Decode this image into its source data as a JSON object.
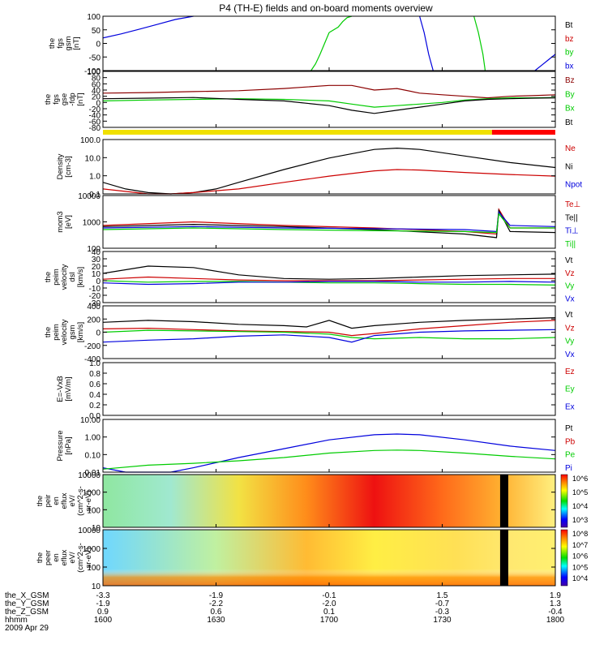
{
  "title": "P4 (TH-E) fields and on-board moments overview",
  "colors": {
    "black": "#000000",
    "red": "#cc0000",
    "green": "#00cc00",
    "blue": "#0000dd",
    "darkred": "#8b0000",
    "yellow": "#f0e000",
    "brightred": "#ff0000"
  },
  "chart_data": [
    {
      "type": "line",
      "ylabel": [
        "the",
        "fgs",
        "gsm",
        "[nT]"
      ],
      "yticks": [
        "100",
        "50",
        "0",
        "-50",
        "-100"
      ],
      "ylim": [
        -100,
        100
      ],
      "log": false,
      "legend": [
        {
          "text": "Bt",
          "color": "#000000"
        },
        {
          "text": "bz",
          "color": "#cc0000"
        },
        {
          "text": "by",
          "color": "#00cc00"
        },
        {
          "text": "bx",
          "color": "#0000dd"
        }
      ],
      "series": [
        {
          "color": "#0000dd",
          "x": [
            0,
            0.04,
            0.08,
            0.12,
            0.16,
            0.2
          ],
          "y": [
            20,
            35,
            52,
            70,
            88,
            100
          ]
        },
        {
          "color": "#00cc00",
          "x": [
            0.46,
            0.47,
            0.48,
            0.49,
            0.5
          ],
          "y": [
            -100,
            -75,
            -40,
            0,
            40
          ]
        },
        {
          "color": "#00cc00",
          "x": [
            0.5,
            0.52,
            0.53,
            0.54,
            0.55
          ],
          "y": [
            40,
            60,
            80,
            95,
            100
          ]
        },
        {
          "color": "#0000dd",
          "x": [
            0.7,
            0.71,
            0.72,
            0.73
          ],
          "y": [
            100,
            40,
            -40,
            -100
          ]
        },
        {
          "color": "#00cc00",
          "x": [
            0.82,
            0.83,
            0.84,
            0.845
          ],
          "y": [
            100,
            40,
            -40,
            -100
          ]
        },
        {
          "color": "#0000dd",
          "x": [
            0.955,
            0.97,
            0.985,
            1.0
          ],
          "y": [
            -100,
            -80,
            -60,
            -40
          ]
        }
      ]
    },
    {
      "type": "line",
      "ylabel": [
        "the",
        "fgs",
        "gse",
        "-fdp",
        "[nT]"
      ],
      "yticks": [
        "100",
        "80",
        "60",
        "40",
        "20",
        "0",
        "-20",
        "-40",
        "-60",
        "-80"
      ],
      "ylim": [
        -80,
        100
      ],
      "log": false,
      "legend": [
        {
          "text": "Bz",
          "color": "#8b0000"
        },
        {
          "text": "By",
          "color": "#00cc00"
        },
        {
          "text": "Bx",
          "color": "#00cc00"
        },
        {
          "text": "Bt",
          "color": "#000000"
        }
      ],
      "series": [
        {
          "color": "#8b0000",
          "x": [
            0,
            0.1,
            0.2,
            0.3,
            0.4,
            0.5,
            0.55,
            0.6,
            0.65,
            0.7,
            0.75,
            0.8,
            0.85,
            0.9,
            0.95,
            1
          ],
          "y": [
            30,
            32,
            35,
            38,
            45,
            55,
            55,
            40,
            45,
            30,
            25,
            20,
            15,
            20,
            22,
            25
          ]
        },
        {
          "color": "#00cc00",
          "x": [
            0,
            0.1,
            0.2,
            0.3,
            0.4,
            0.5,
            0.55,
            0.6,
            0.65,
            0.7,
            0.75,
            0.8,
            0.85,
            0.9,
            0.95,
            1
          ],
          "y": [
            5,
            8,
            10,
            12,
            10,
            5,
            -5,
            -15,
            -10,
            -5,
            0,
            8,
            12,
            15,
            15,
            16
          ]
        },
        {
          "color": "#000000",
          "x": [
            0,
            0.1,
            0.2,
            0.3,
            0.4,
            0.5,
            0.55,
            0.6,
            0.65,
            0.7,
            0.75,
            0.8,
            0.85,
            0.9,
            0.95,
            1
          ],
          "y": [
            12,
            14,
            16,
            10,
            5,
            -10,
            -25,
            -35,
            -25,
            -15,
            -5,
            5,
            10,
            12,
            14,
            15
          ]
        }
      ]
    },
    {
      "type": "line",
      "ylabel": [
        "Density",
        "[cm-3]"
      ],
      "yticks": [
        "100.0",
        "10.0",
        "1.0",
        "0.1"
      ],
      "ylim": [
        0.1,
        200
      ],
      "log": true,
      "legend": [
        {
          "text": "Ne",
          "color": "#cc0000"
        },
        {
          "text": "Ni",
          "color": "#000000"
        },
        {
          "text": "Npot",
          "color": "#0000dd"
        }
      ],
      "series": [
        {
          "color": "#000000",
          "x": [
            0,
            0.05,
            0.1,
            0.15,
            0.2,
            0.25,
            0.3,
            0.4,
            0.5,
            0.6,
            0.65,
            0.7,
            0.8,
            0.9,
            1
          ],
          "y": [
            0.5,
            0.2,
            0.12,
            0.1,
            0.12,
            0.2,
            0.5,
            3,
            15,
            50,
            60,
            50,
            20,
            8,
            4
          ]
        },
        {
          "color": "#cc0000",
          "x": [
            0,
            0.1,
            0.15,
            0.2,
            0.3,
            0.4,
            0.5,
            0.6,
            0.65,
            0.7,
            0.8,
            0.9,
            1
          ],
          "y": [
            0.2,
            0.1,
            0.1,
            0.12,
            0.2,
            0.5,
            1.2,
            2.5,
            3,
            2.8,
            2,
            1.5,
            1.2
          ]
        }
      ]
    },
    {
      "type": "line",
      "ylabel": [
        "mom3",
        "[eV]"
      ],
      "yticks": [
        "10000",
        "1000",
        "100"
      ],
      "ylim": [
        30,
        12000
      ],
      "log": true,
      "legend": [
        {
          "text": "Te⊥",
          "color": "#cc0000"
        },
        {
          "text": "Te||",
          "color": "#000000"
        },
        {
          "text": "Ti⊥",
          "color": "#0000dd"
        },
        {
          "text": "Ti||",
          "color": "#00cc00"
        }
      ],
      "series": [
        {
          "color": "#cc0000",
          "x": [
            0,
            0.2,
            0.4,
            0.6,
            0.8,
            0.87,
            0.875,
            0.9,
            1
          ],
          "y": [
            400,
            600,
            400,
            300,
            200,
            150,
            2500,
            300,
            300
          ]
        },
        {
          "color": "#000000",
          "x": [
            0,
            0.2,
            0.4,
            0.6,
            0.8,
            0.87,
            0.875,
            0.9,
            1
          ],
          "y": [
            350,
            450,
            350,
            250,
            150,
            100,
            2200,
            200,
            180
          ]
        },
        {
          "color": "#0000dd",
          "x": [
            0,
            0.2,
            0.4,
            0.6,
            0.8,
            0.87,
            0.875,
            0.9,
            1
          ],
          "y": [
            300,
            350,
            300,
            280,
            250,
            200,
            1800,
            400,
            350
          ]
        },
        {
          "color": "#00cc00",
          "x": [
            0,
            0.2,
            0.4,
            0.6,
            0.8,
            0.87,
            0.875,
            0.9,
            1
          ],
          "y": [
            250,
            300,
            250,
            220,
            200,
            180,
            1500,
            300,
            300
          ]
        }
      ]
    },
    {
      "type": "line",
      "ylabel": [
        "the",
        "peim",
        "velocity",
        "dsl",
        "[km/s]"
      ],
      "yticks": [
        "40",
        "30",
        "20",
        "10",
        "0",
        "-10",
        "-20",
        "-30"
      ],
      "ylim": [
        -30,
        40
      ],
      "log": false,
      "legend": [
        {
          "text": "Vt",
          "color": "#000000"
        },
        {
          "text": "Vz",
          "color": "#cc0000"
        },
        {
          "text": "Vy",
          "color": "#00cc00"
        },
        {
          "text": "Vx",
          "color": "#0000dd"
        }
      ],
      "series": [
        {
          "color": "#000000",
          "x": [
            0,
            0.1,
            0.2,
            0.3,
            0.4,
            0.5,
            0.6,
            0.7,
            0.8,
            0.9,
            1
          ],
          "y": [
            10,
            20,
            18,
            8,
            3,
            2,
            3,
            5,
            7,
            8,
            9
          ]
        },
        {
          "color": "#cc0000",
          "x": [
            0,
            0.1,
            0.2,
            0.3,
            0.4,
            0.5,
            0.6,
            0.7,
            0.8,
            0.9,
            1
          ],
          "y": [
            2,
            5,
            3,
            1,
            0,
            0,
            0,
            1,
            2,
            3,
            3
          ]
        },
        {
          "color": "#00cc00",
          "x": [
            0,
            0.1,
            0.2,
            0.3,
            0.4,
            0.5,
            0.6,
            0.7,
            0.8,
            0.9,
            1
          ],
          "y": [
            0,
            -2,
            -1,
            -1,
            -2,
            -3,
            -3,
            -4,
            -5,
            -5,
            -6
          ]
        },
        {
          "color": "#0000dd",
          "x": [
            0,
            0.1,
            0.2,
            0.3,
            0.4,
            0.5,
            0.6,
            0.7,
            0.8,
            0.9,
            1
          ],
          "y": [
            -3,
            -5,
            -4,
            -2,
            -2,
            -1,
            -1,
            -2,
            -2,
            -1,
            -2
          ]
        }
      ]
    },
    {
      "type": "line",
      "ylabel": [
        "the",
        "peim",
        "velocity",
        "gsm",
        "[km/s]"
      ],
      "yticks": [
        "400",
        "200",
        "0",
        "-200",
        "-400"
      ],
      "ylim": [
        -400,
        400
      ],
      "log": false,
      "legend": [
        {
          "text": "Vt",
          "color": "#000000"
        },
        {
          "text": "Vz",
          "color": "#cc0000"
        },
        {
          "text": "Vy",
          "color": "#00cc00"
        },
        {
          "text": "Vx",
          "color": "#0000dd"
        }
      ],
      "series": [
        {
          "color": "#000000",
          "x": [
            0,
            0.1,
            0.2,
            0.3,
            0.4,
            0.45,
            0.5,
            0.55,
            0.6,
            0.7,
            0.8,
            0.9,
            1
          ],
          "y": [
            150,
            180,
            160,
            120,
            100,
            80,
            180,
            60,
            100,
            150,
            180,
            200,
            220
          ]
        },
        {
          "color": "#cc0000",
          "x": [
            0,
            0.1,
            0.2,
            0.3,
            0.4,
            0.5,
            0.55,
            0.6,
            0.7,
            0.8,
            0.9,
            1
          ],
          "y": [
            50,
            60,
            40,
            20,
            10,
            0,
            -50,
            -20,
            50,
            100,
            150,
            180
          ]
        },
        {
          "color": "#00cc00",
          "x": [
            0,
            0.1,
            0.2,
            0.3,
            0.4,
            0.5,
            0.55,
            0.6,
            0.7,
            0.8,
            0.9,
            1
          ],
          "y": [
            0,
            30,
            20,
            10,
            0,
            -30,
            -80,
            -100,
            -80,
            -100,
            -100,
            -80
          ]
        },
        {
          "color": "#0000dd",
          "x": [
            0,
            0.1,
            0.2,
            0.3,
            0.4,
            0.5,
            0.55,
            0.6,
            0.7,
            0.8,
            0.9,
            1
          ],
          "y": [
            -150,
            -120,
            -100,
            -60,
            -40,
            -80,
            -150,
            -50,
            0,
            20,
            30,
            40
          ]
        }
      ]
    },
    {
      "type": "line",
      "ylabel": [
        "E=-VxB",
        "[mV/m]"
      ],
      "yticks": [
        "1.0",
        "0.8",
        "0.6",
        "0.4",
        "0.2",
        "0.0"
      ],
      "ylim": [
        0,
        1
      ],
      "log": false,
      "legend": [
        {
          "text": "Ez",
          "color": "#cc0000"
        },
        {
          "text": "Ey",
          "color": "#00cc00"
        },
        {
          "text": "Ex",
          "color": "#0000dd"
        }
      ],
      "series": []
    },
    {
      "type": "line",
      "ylabel": [
        "Pressure",
        "[nPa]"
      ],
      "yticks": [
        "10.00",
        "1.00",
        "0.10",
        "0.01"
      ],
      "ylim": [
        0.005,
        20
      ],
      "log": true,
      "legend": [
        {
          "text": "Pt",
          "color": "#000000"
        },
        {
          "text": "Pb",
          "color": "#cc0000"
        },
        {
          "text": "Pe",
          "color": "#00cc00"
        },
        {
          "text": "Pi",
          "color": "#0000dd"
        }
      ],
      "series": [
        {
          "color": "#0000dd",
          "x": [
            0,
            0.05,
            0.1,
            0.15,
            0.2,
            0.3,
            0.4,
            0.5,
            0.6,
            0.65,
            0.7,
            0.8,
            0.9,
            1
          ],
          "y": [
            0.01,
            0.005,
            0.004,
            0.005,
            0.01,
            0.05,
            0.2,
            0.8,
            1.8,
            2,
            1.8,
            0.8,
            0.3,
            0.15
          ]
        },
        {
          "color": "#00cc00",
          "x": [
            0,
            0.1,
            0.2,
            0.3,
            0.4,
            0.5,
            0.6,
            0.65,
            0.7,
            0.8,
            0.9,
            1
          ],
          "y": [
            0.008,
            0.015,
            0.02,
            0.03,
            0.05,
            0.1,
            0.15,
            0.16,
            0.15,
            0.1,
            0.06,
            0.04
          ]
        }
      ]
    },
    {
      "type": "heatmap",
      "ylabel": [
        "the",
        "peir",
        "en",
        "eflux",
        "eV/",
        "(cm^2-s-",
        "sr-eV)"
      ],
      "yticks": [
        "10000",
        "1000",
        "100",
        "10"
      ],
      "cbar": [
        "10^6",
        "10^5",
        "10^4",
        "10^3"
      ]
    },
    {
      "type": "heatmap",
      "ylabel": [
        "the",
        "peer",
        "en",
        "eflux",
        "eV/",
        "(cm^2-s-",
        "sr-eV)"
      ],
      "yticks": [
        "10000",
        "1000",
        "100",
        "10"
      ],
      "cbar": [
        "10^8",
        "10^7",
        "10^6",
        "10^5",
        "10^4"
      ]
    }
  ],
  "footer": {
    "rows": [
      {
        "label": "the_X_GSM",
        "values": [
          "-3.3",
          "-1.9",
          "-0.1",
          "1.5",
          "1.9"
        ]
      },
      {
        "label": "the_Y_GSM",
        "values": [
          "-1.9",
          "-2.2",
          "-2.0",
          "-0.7",
          "1.3"
        ]
      },
      {
        "label": "the_Z_GSM",
        "values": [
          "0.9",
          "0.6",
          "0.1",
          "-0.3",
          "-0.4"
        ]
      },
      {
        "label": "hhmm",
        "values": [
          "1600",
          "1630",
          "1700",
          "1730",
          "1800"
        ]
      }
    ],
    "date": "2009 Apr 29"
  },
  "xticks": [
    0,
    0.25,
    0.5,
    0.75,
    1
  ]
}
